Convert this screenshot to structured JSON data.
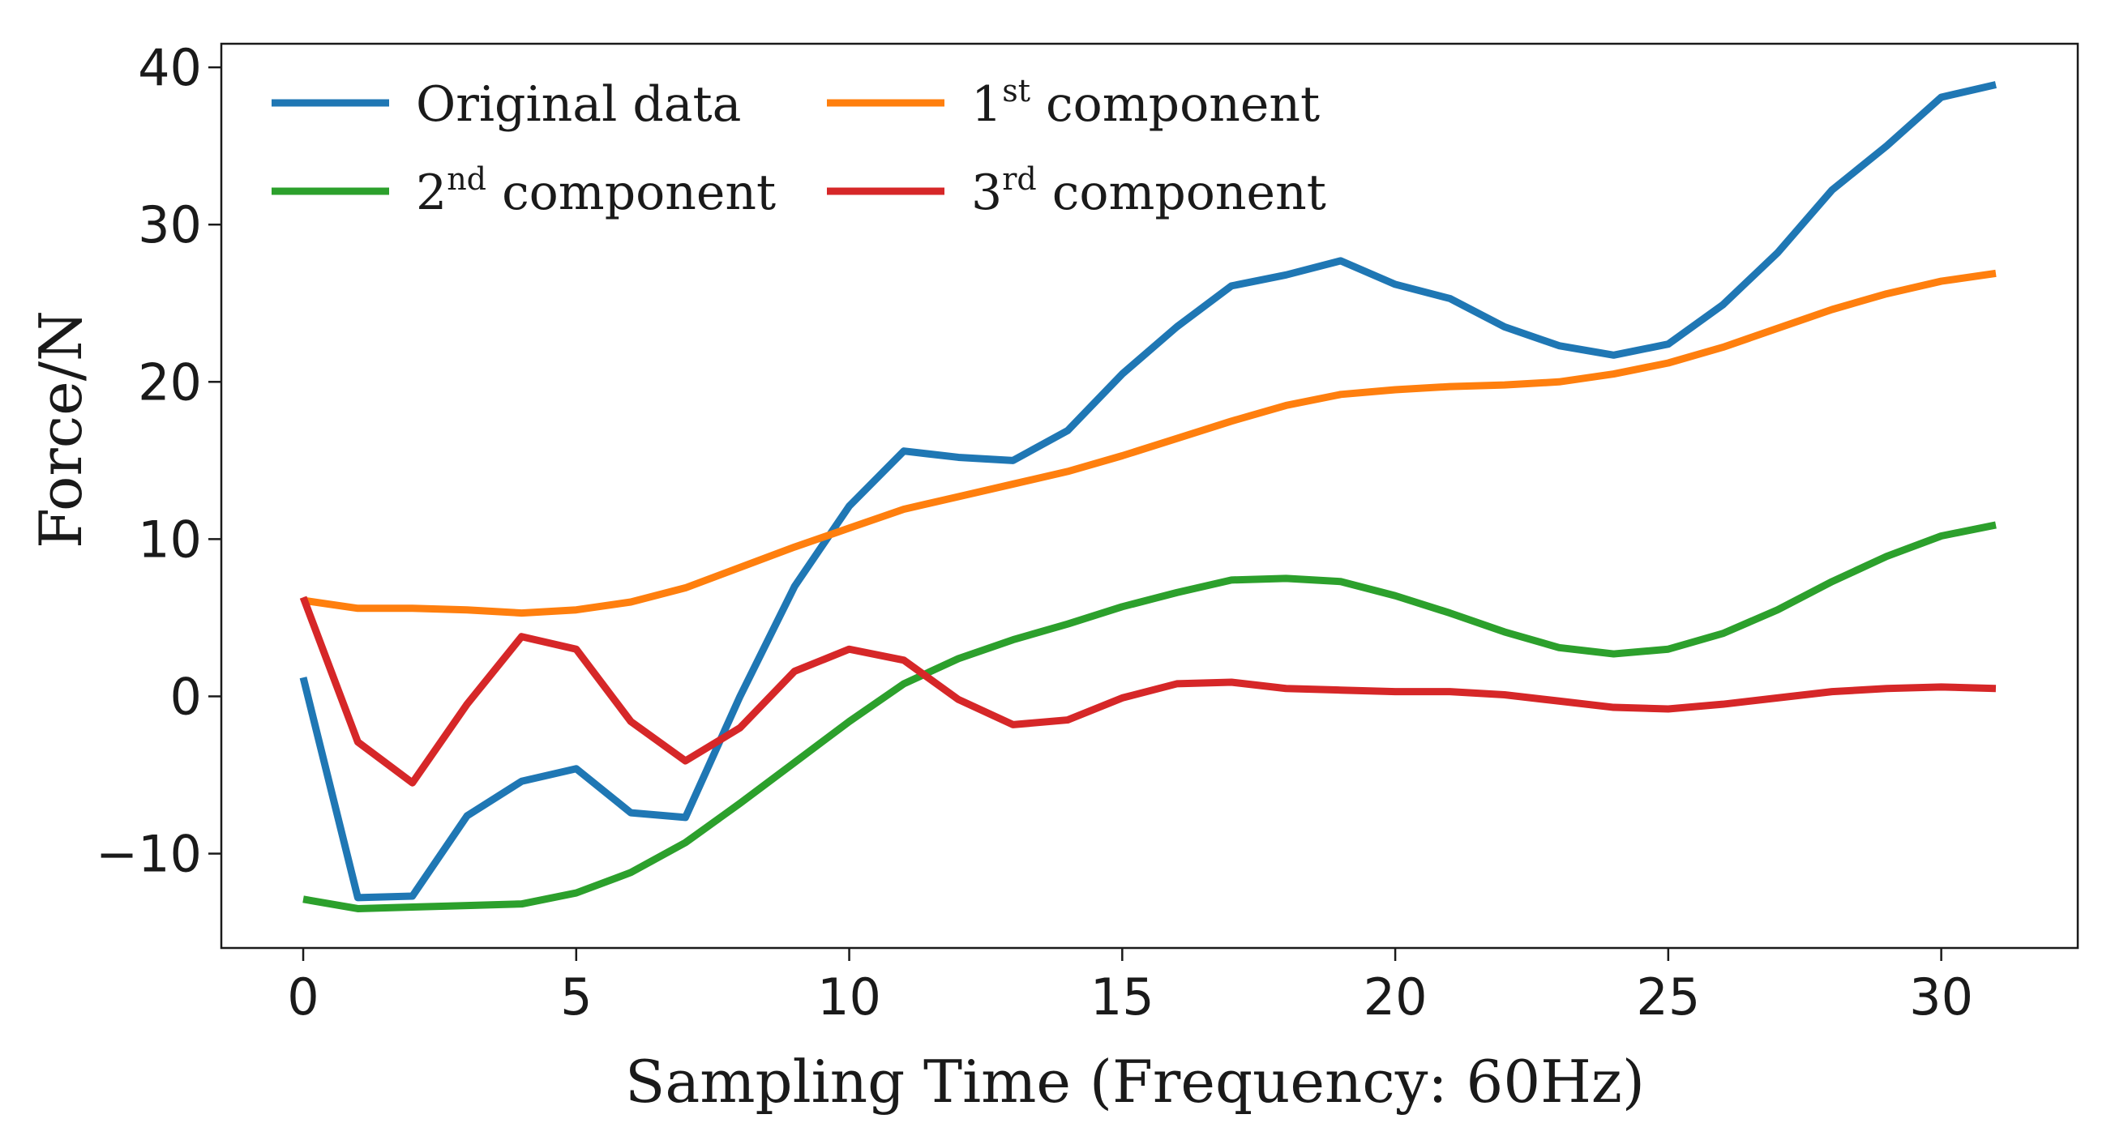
{
  "chart_data": {
    "type": "line",
    "title": "",
    "xlabel": "Sampling Time  (Frequency: 60Hz)",
    "ylabel": "Force/N",
    "xlim": [
      -1.5,
      32.5
    ],
    "ylim": [
      -16,
      41.5
    ],
    "xticks": [
      0,
      5,
      10,
      15,
      20,
      25,
      30
    ],
    "yticks": [
      -10,
      0,
      10,
      20,
      30,
      40
    ],
    "xtick_labels": [
      "0",
      "5",
      "10",
      "15",
      "20",
      "25",
      "30"
    ],
    "ytick_labels": [
      "−10",
      "0",
      "10",
      "20",
      "30",
      "40"
    ],
    "grid": false,
    "legend_placement": "top-left",
    "x": [
      0,
      1,
      2,
      3,
      4,
      5,
      6,
      7,
      8,
      9,
      10,
      11,
      12,
      13,
      14,
      15,
      16,
      17,
      18,
      19,
      20,
      21,
      22,
      23,
      24,
      25,
      26,
      27,
      28,
      29,
      30,
      31
    ],
    "series": [
      {
        "name": "Original data",
        "legend_main": "Original data",
        "legend_sup": "",
        "legend_tail": "",
        "color": "#1f77b4",
        "values": [
          1.2,
          -12.8,
          -12.7,
          -7.6,
          -5.4,
          -4.6,
          -7.4,
          -7.7,
          0,
          7,
          12.1,
          15.6,
          15.2,
          15,
          16.9,
          20.5,
          23.5,
          26.1,
          26.8,
          27.7,
          26.2,
          25.3,
          23.5,
          22.3,
          21.7,
          22.4,
          24.9,
          28.2,
          32.2,
          35,
          38.1,
          38.9
        ]
      },
      {
        "name": "1st component",
        "legend_main": "1",
        "legend_sup": "st",
        "legend_tail": " component",
        "color": "#ff7f0e",
        "values": [
          6.1,
          5.6,
          5.6,
          5.5,
          5.3,
          5.5,
          6,
          6.9,
          8.2,
          9.5,
          10.7,
          11.9,
          12.7,
          13.5,
          14.3,
          15.3,
          16.4,
          17.5,
          18.5,
          19.2,
          19.5,
          19.7,
          19.8,
          20,
          20.5,
          21.2,
          22.2,
          23.4,
          24.6,
          25.6,
          26.4,
          26.9
        ]
      },
      {
        "name": "2nd component",
        "legend_main": "2",
        "legend_sup": "nd",
        "legend_tail": " component",
        "color": "#2ca02c",
        "values": [
          -12.9,
          -13.5,
          -13.4,
          -13.3,
          -13.2,
          -12.5,
          -11.2,
          -9.3,
          -6.8,
          -4.2,
          -1.6,
          0.8,
          2.4,
          3.6,
          4.6,
          5.7,
          6.6,
          7.4,
          7.5,
          7.3,
          6.4,
          5.3,
          4.1,
          3.1,
          2.7,
          3,
          4,
          5.5,
          7.3,
          8.9,
          10.2,
          10.9
        ]
      },
      {
        "name": "3rd component",
        "legend_main": "3",
        "legend_sup": "rd",
        "legend_tail": " component",
        "color": "#d62728",
        "values": [
          6.3,
          -2.9,
          -5.5,
          -0.5,
          3.8,
          3,
          -1.6,
          -4.1,
          -2,
          1.6,
          3,
          2.3,
          -0.2,
          -1.8,
          -1.5,
          -0.1,
          0.8,
          0.9,
          0.5,
          0.4,
          0.3,
          0.3,
          0.1,
          -0.3,
          -0.7,
          -0.8,
          -0.5,
          -0.1,
          0.3,
          0.5,
          0.6,
          0.5
        ]
      }
    ]
  }
}
